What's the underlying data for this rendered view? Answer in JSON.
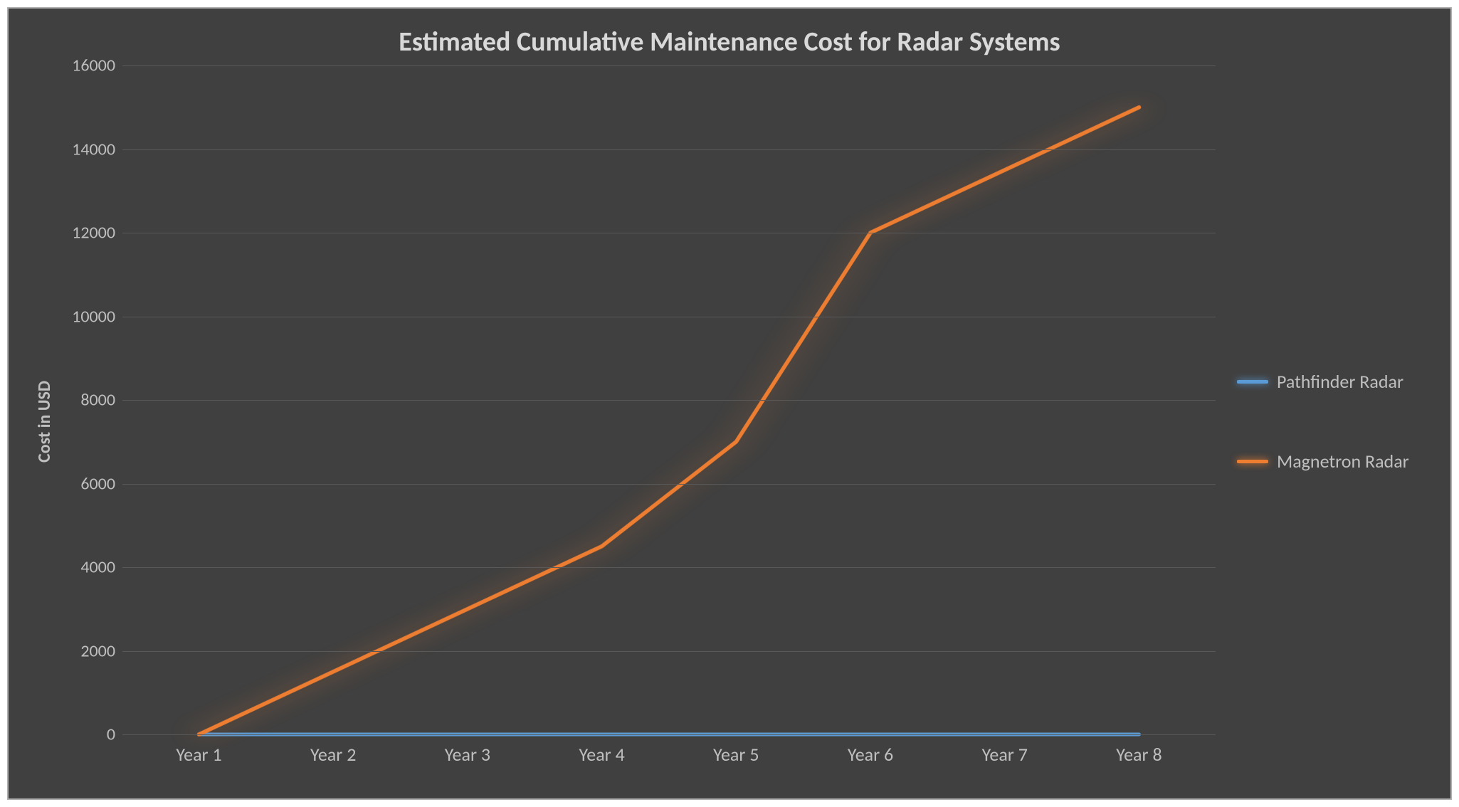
{
  "chart": {
    "type": "line",
    "title": "Estimated Cumulative Maintenance Cost for Radar Systems",
    "title_fontsize": 38,
    "title_color": "#d9d9d9",
    "background_color": "#404040",
    "border_color": "#b0b0b0",
    "yaxis": {
      "label": "Cost in USD",
      "label_fontsize": 24,
      "label_color": "#bfbfbf",
      "min": 0,
      "max": 16000,
      "tick_step": 2000,
      "ticks": [
        0,
        2000,
        4000,
        6000,
        8000,
        10000,
        12000,
        14000,
        16000
      ],
      "tick_fontsize": 24,
      "tick_color": "#bfbfbf"
    },
    "xaxis": {
      "categories": [
        "Year 1",
        "Year 2",
        "Year 3",
        "Year 4",
        "Year 5",
        "Year 6",
        "Year 7",
        "Year 8"
      ],
      "tick_fontsize": 26,
      "tick_color": "#bfbfbf",
      "inset_frac": 0.07
    },
    "grid": {
      "color": "#595959",
      "width": 1
    },
    "series": [
      {
        "name": "Pathfinder Radar",
        "color": "#5b9bd5",
        "glow_color": "#5b9bd5",
        "line_width": 5,
        "values": [
          0,
          0,
          0,
          0,
          0,
          0,
          0,
          0
        ]
      },
      {
        "name": "Magnetron Radar",
        "color": "#ed7d31",
        "glow_color": "#ed7d31",
        "line_width": 5,
        "values": [
          0,
          1500,
          3000,
          4500,
          7000,
          12000,
          13500,
          15000
        ]
      }
    ],
    "legend": {
      "fontsize": 26,
      "text_color": "#bfbfbf"
    }
  }
}
